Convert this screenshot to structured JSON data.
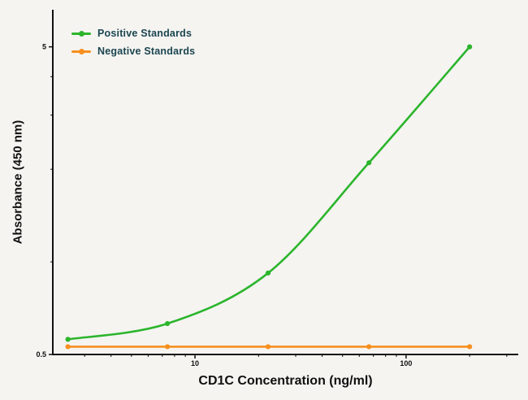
{
  "chart_data": {
    "type": "line",
    "title": "",
    "xlabel": "CD1C Concentration (ng/ml)",
    "ylabel": "Absorbance (450 nm)",
    "x_scale": "log",
    "y_scale": "log",
    "xlim": [
      2.12,
      340
    ],
    "ylim": [
      0.5,
      6.6
    ],
    "grid": false,
    "legend_position": "top-left",
    "axis_color": "#111111",
    "x_ticks": [
      {
        "value": 10,
        "label": "10"
      },
      {
        "value": 100,
        "label": "100"
      }
    ],
    "y_ticks": [
      {
        "value": 0.5,
        "label": "0.5"
      },
      {
        "value": 5,
        "label": "5"
      }
    ],
    "x_minor_ticks": [
      3,
      4,
      5,
      6,
      7,
      8,
      9,
      20,
      30,
      40,
      50,
      60,
      70,
      80,
      90,
      200,
      300
    ],
    "y_minor_ticks": [
      1,
      2,
      3,
      4
    ],
    "x": [
      2.5,
      7.4,
      22.2,
      66.7,
      200
    ],
    "series": [
      {
        "name": "Positive Standards",
        "color": "#2cb52c",
        "smooth": true,
        "values": [
          0.56,
          0.63,
          0.92,
          2.1,
          5.0
        ]
      },
      {
        "name": "Negative Standards",
        "color": "#f78f1e",
        "smooth": false,
        "values": [
          0.53,
          0.53,
          0.53,
          0.53,
          0.53
        ]
      }
    ]
  }
}
